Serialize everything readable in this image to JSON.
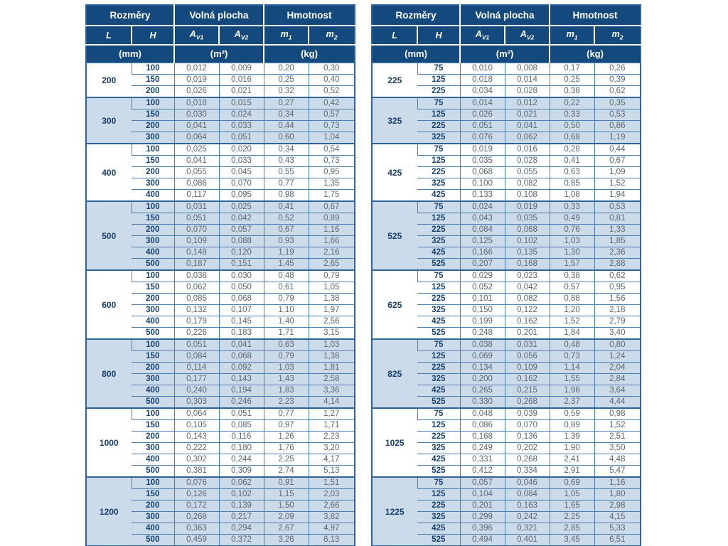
{
  "colors": {
    "header_bg": "#14497E",
    "header_text": "#FFFFFF",
    "group_alt_bg": "#CCDBEA",
    "group_bg": "#FFFFFF",
    "grid_line": "#4D7EB2",
    "outer_border": "#2F6399",
    "label_text": "#16406E",
    "value_text": "#5C6670"
  },
  "header": {
    "dimensions": "Rozměry",
    "free_area": "Volná plocha",
    "weight": "Hmotnost",
    "col_l": "L",
    "col_h": "H",
    "col_av_base": "A",
    "col_av1_sub": "V1",
    "col_av2_sub": "V2",
    "col_m_base": "m",
    "col_m1_sub": "1",
    "col_m2_sub": "2",
    "unit_mm": "(mm)",
    "unit_m2": "(m²)",
    "unit_kg": "(kg)"
  },
  "tables": [
    {
      "groups": [
        {
          "L": "200",
          "rows": [
            [
              "100",
              "0,012",
              "0,009",
              "0,20",
              "0,30"
            ],
            [
              "150",
              "0,019",
              "0,016",
              "0,25",
              "0,40"
            ],
            [
              "200",
              "0,026",
              "0,021",
              "0,32",
              "0,52"
            ]
          ]
        },
        {
          "L": "300",
          "rows": [
            [
              "100",
              "0,018",
              "0,015",
              "0,27",
              "0,42"
            ],
            [
              "150",
              "0,030",
              "0,024",
              "0,34",
              "0,57"
            ],
            [
              "200",
              "0,041",
              "0,033",
              "0,44",
              "0,73"
            ],
            [
              "300",
              "0,064",
              "0,051",
              "0,60",
              "1,04"
            ]
          ]
        },
        {
          "L": "400",
          "rows": [
            [
              "100",
              "0,025",
              "0,020",
              "0,34",
              "0,54"
            ],
            [
              "150",
              "0,041",
              "0,033",
              "0,43",
              "0,73"
            ],
            [
              "200",
              "0,055",
              "0,045",
              "0,55",
              "0,95"
            ],
            [
              "300",
              "0,086",
              "0,070",
              "0,77",
              "1,35"
            ],
            [
              "400",
              "0,117",
              "0,095",
              "0,98",
              "1,75"
            ]
          ]
        },
        {
          "L": "500",
          "rows": [
            [
              "100",
              "0,031",
              "0,025",
              "0,41",
              "0,67"
            ],
            [
              "150",
              "0,051",
              "0,042",
              "0,52",
              "0,89"
            ],
            [
              "200",
              "0,070",
              "0,057",
              "0,67",
              "1,16"
            ],
            [
              "300",
              "0,109",
              "0,088",
              "0,93",
              "1,66"
            ],
            [
              "400",
              "0,148",
              "0,120",
              "1,19",
              "2,16"
            ],
            [
              "500",
              "0,187",
              "0,151",
              "1,45",
              "2,65"
            ]
          ]
        },
        {
          "L": "600",
          "rows": [
            [
              "100",
              "0,038",
              "0,030",
              "0,48",
              "0,79"
            ],
            [
              "150",
              "0,062",
              "0,050",
              "0,61",
              "1,05"
            ],
            [
              "200",
              "0,085",
              "0,068",
              "0,79",
              "1,38"
            ],
            [
              "300",
              "0,132",
              "0,107",
              "1,10",
              "1,97"
            ],
            [
              "400",
              "0,179",
              "0,145",
              "1,40",
              "2,56"
            ],
            [
              "500",
              "0,226",
              "0,183",
              "1,71",
              "3,15"
            ]
          ]
        },
        {
          "L": "800",
          "rows": [
            [
              "100",
              "0,051",
              "0,041",
              "0,63",
              "1,03"
            ],
            [
              "150",
              "0,084",
              "0,068",
              "0,79",
              "1,38"
            ],
            [
              "200",
              "0,114",
              "0,092",
              "1,03",
              "1,81"
            ],
            [
              "300",
              "0,177",
              "0,143",
              "1,43",
              "2,58"
            ],
            [
              "400",
              "0,240",
              "0,194",
              "1,83",
              "3,36"
            ],
            [
              "500",
              "0,303",
              "0,246",
              "2,23",
              "4,14"
            ]
          ]
        },
        {
          "L": "1000",
          "rows": [
            [
              "100",
              "0,064",
              "0,051",
              "0,77",
              "1,27"
            ],
            [
              "150",
              "0,105",
              "0,085",
              "0,97",
              "1,71"
            ],
            [
              "200",
              "0,143",
              "0,116",
              "1,26",
              "2,23"
            ],
            [
              "300",
              "0,222",
              "0,180",
              "1,76",
              "3,20"
            ],
            [
              "400",
              "0,302",
              "0,244",
              "2,25",
              "4,17"
            ],
            [
              "500",
              "0,381",
              "0,309",
              "2,74",
              "5,13"
            ]
          ]
        },
        {
          "L": "1200",
          "rows": [
            [
              "100",
              "0,076",
              "0,062",
              "0,91",
              "1,51"
            ],
            [
              "150",
              "0,126",
              "0,102",
              "1,15",
              "2,03"
            ],
            [
              "200",
              "0,172",
              "0,139",
              "1,50",
              "2,66"
            ],
            [
              "300",
              "0,268",
              "0,217",
              "2,09",
              "3,82"
            ],
            [
              "400",
              "0,363",
              "0,294",
              "2,67",
              "4,97"
            ],
            [
              "500",
              "0,459",
              "0,372",
              "3,26",
              "6,13"
            ]
          ]
        }
      ]
    },
    {
      "groups": [
        {
          "L": "225",
          "rows": [
            [
              "75",
              "0,010",
              "0,008",
              "0,17",
              "0,26"
            ],
            [
              "125",
              "0,018",
              "0,014",
              "0,25",
              "0,39"
            ],
            [
              "225",
              "0,034",
              "0,028",
              "0,38",
              "0,62"
            ]
          ]
        },
        {
          "L": "325",
          "rows": [
            [
              "75",
              "0,014",
              "0,012",
              "0,22",
              "0,35"
            ],
            [
              "125",
              "0,026",
              "0,021",
              "0,33",
              "0,53"
            ],
            [
              "225",
              "0,051",
              "0,041",
              "0,50",
              "0,86"
            ],
            [
              "325",
              "0,076",
              "0,062",
              "0,68",
              "1,19"
            ]
          ]
        },
        {
          "L": "425",
          "rows": [
            [
              "75",
              "0,019",
              "0,016",
              "0,28",
              "0,44"
            ],
            [
              "125",
              "0,035",
              "0,028",
              "0,41",
              "0,67"
            ],
            [
              "225",
              "0,068",
              "0,055",
              "0,63",
              "1,09"
            ],
            [
              "325",
              "0,100",
              "0,082",
              "0,85",
              "1,52"
            ],
            [
              "425",
              "0,133",
              "0,108",
              "1,08",
              "1,94"
            ]
          ]
        },
        {
          "L": "525",
          "rows": [
            [
              "75",
              "0,024",
              "0,019",
              "0,33",
              "0,53"
            ],
            [
              "125",
              "0,043",
              "0,035",
              "0,49",
              "0,81"
            ],
            [
              "225",
              "0,084",
              "0,068",
              "0,76",
              "1,33"
            ],
            [
              "325",
              "0,125",
              "0,102",
              "1,03",
              "1,85"
            ],
            [
              "425",
              "0,166",
              "0,135",
              "1,30",
              "2,36"
            ],
            [
              "525",
              "0,207",
              "0,168",
              "1,57",
              "2,88"
            ]
          ]
        },
        {
          "L": "625",
          "rows": [
            [
              "75",
              "0,029",
              "0,023",
              "0,38",
              "0,62"
            ],
            [
              "125",
              "0,052",
              "0,042",
              "0,57",
              "0,95"
            ],
            [
              "225",
              "0,101",
              "0,082",
              "0,88",
              "1,56"
            ],
            [
              "325",
              "0,150",
              "0,122",
              "1,20",
              "2,18"
            ],
            [
              "425",
              "0,199",
              "0,162",
              "1,52",
              "2,79"
            ],
            [
              "525",
              "0,248",
              "0,201",
              "1,84",
              "3,40"
            ]
          ]
        },
        {
          "L": "825",
          "rows": [
            [
              "75",
              "0,038",
              "0,031",
              "0,48",
              "0,80"
            ],
            [
              "125",
              "0,069",
              "0,056",
              "0,73",
              "1,24"
            ],
            [
              "225",
              "0,134",
              "0,109",
              "1,14",
              "2,04"
            ],
            [
              "325",
              "0,200",
              "0,162",
              "1,55",
              "2,84"
            ],
            [
              "425",
              "0,265",
              "0,215",
              "1,96",
              "3,64"
            ],
            [
              "525",
              "0,330",
              "0,268",
              "2,37",
              "4,44"
            ]
          ]
        },
        {
          "L": "1025",
          "rows": [
            [
              "75",
              "0,048",
              "0,039",
              "0,59",
              "0,98"
            ],
            [
              "125",
              "0,086",
              "0,070",
              "0,89",
              "1,52"
            ],
            [
              "225",
              "0,168",
              "0,136",
              "1,39",
              "2,51"
            ],
            [
              "325",
              "0,249",
              "0,202",
              "1,90",
              "3,50"
            ],
            [
              "425",
              "0,331",
              "0,268",
              "2,41",
              "4,48"
            ],
            [
              "525",
              "0,412",
              "0,334",
              "2,91",
              "5,47"
            ]
          ]
        },
        {
          "L": "1225",
          "rows": [
            [
              "75",
              "0,057",
              "0,046",
              "0,69",
              "1,16"
            ],
            [
              "125",
              "0,104",
              "0,084",
              "1,05",
              "1,80"
            ],
            [
              "225",
              "0,201",
              "0,163",
              "1,65",
              "2,98"
            ],
            [
              "325",
              "0,299",
              "0,242",
              "2,25",
              "4,15"
            ],
            [
              "425",
              "0,396",
              "0,321",
              "2,85",
              "5,33"
            ],
            [
              "525",
              "0,494",
              "0,401",
              "3,45",
              "6,51"
            ]
          ]
        }
      ]
    }
  ]
}
